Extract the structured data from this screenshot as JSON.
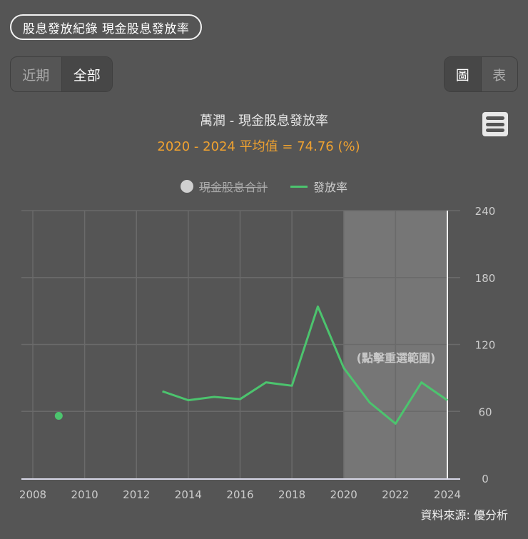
{
  "header": {
    "title": "股息發放紀錄  現金股息發放率"
  },
  "range_toggle": {
    "options": [
      "近期",
      "全部"
    ],
    "selected": "全部"
  },
  "view_toggle": {
    "options": [
      "圖",
      "表"
    ],
    "selected": "圖"
  },
  "menu_icon": "hamburger-menu-icon",
  "source": "資料來源: 優分析",
  "chart_data": {
    "type": "line",
    "title": "萬潤 - 現金股息發放率",
    "subtitle": "2020 - 2024 平均值 = 74.76 (%)",
    "legend": [
      {
        "name": "現金股息合計",
        "hidden": true,
        "color": "#d0d0d0"
      },
      {
        "name": "發放率",
        "hidden": false,
        "color": "#4cc46e"
      }
    ],
    "legend_position": "top",
    "x_ticks": [
      "2008",
      "2010",
      "2012",
      "2014",
      "2016",
      "2018",
      "2020",
      "2022",
      "2024"
    ],
    "y_ticks": [
      "0",
      "60",
      "120",
      "180",
      "240"
    ],
    "xlim": [
      2008,
      2024
    ],
    "ylim": [
      0,
      240
    ],
    "grid": true,
    "y_axis_side": "right",
    "selected_range": [
      2020,
      2024
    ],
    "selection_hint": "(點擊重選範圍)",
    "series": [
      {
        "name": "發放率",
        "color": "#4cc46e",
        "x": [
          2009,
          2013,
          2014,
          2015,
          2016,
          2017,
          2018,
          2019,
          2020,
          2021,
          2022,
          2023,
          2024
        ],
        "values": [
          56,
          78,
          70,
          73,
          71,
          86,
          83,
          154,
          99,
          68,
          49,
          86,
          70
        ]
      }
    ]
  }
}
